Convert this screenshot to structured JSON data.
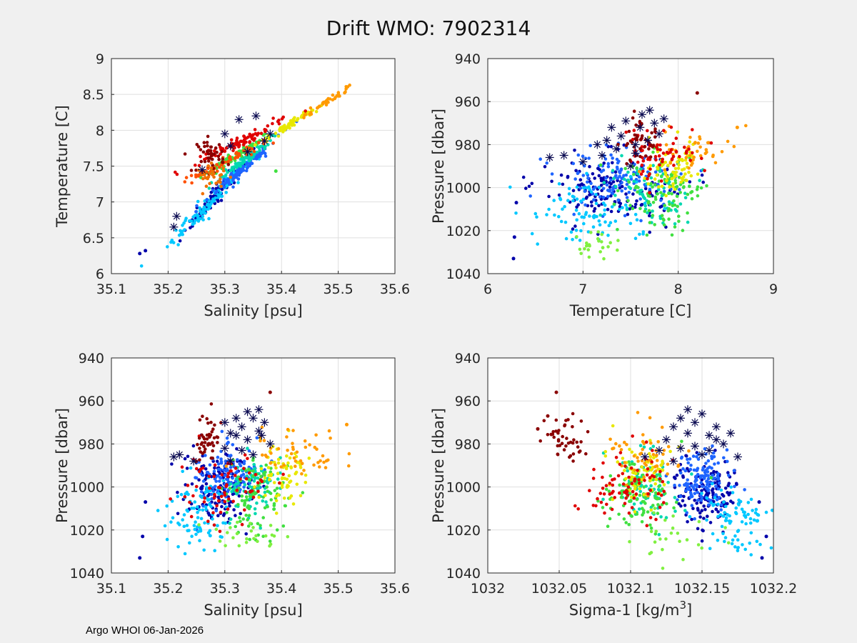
{
  "figure": {
    "title": "Drift WMO: 7902314",
    "footer": "Argo WHOI 06-Jan-2026",
    "colors": {
      "background": "#f0f0f0",
      "axes": "#ffffff",
      "grid": "#dfdfdf",
      "star": "#0a0a50"
    }
  },
  "chart_data": [
    {
      "type": "scatter",
      "id": "ts",
      "xlabel": "Salinity [psu]",
      "ylabel": "Temperature [C]",
      "xlim": [
        35.1,
        35.6
      ],
      "ylim": [
        6,
        9
      ],
      "y_reversed": false,
      "xticks": [
        "35.1",
        "35.2",
        "35.3",
        "35.4",
        "35.5",
        "35.6"
      ],
      "yticks": [
        "6",
        "6.5",
        "7",
        "7.5",
        "8",
        "8.5",
        "9"
      ],
      "clusters": [
        {
          "color": "#0000aa",
          "n": 120,
          "cx": 35.29,
          "cy": 7.15,
          "sx": 0.03,
          "sy": 0.28,
          "line": {
            "slope": 9.5
          }
        },
        {
          "color": "#00c8ff",
          "n": 110,
          "cx": 35.28,
          "cy": 7.05,
          "sx": 0.035,
          "sy": 0.3,
          "line": {
            "slope": 8.5
          }
        },
        {
          "color": "#1e64ff",
          "n": 90,
          "cx": 35.33,
          "cy": 7.45,
          "sx": 0.03,
          "sy": 0.2,
          "line": {
            "slope": 7
          }
        },
        {
          "color": "#00d8b0",
          "n": 70,
          "cx": 35.33,
          "cy": 7.55,
          "sx": 0.025,
          "sy": 0.12,
          "line": {
            "slope": 6
          }
        },
        {
          "color": "#40e040",
          "n": 80,
          "cx": 35.32,
          "cy": 7.65,
          "sx": 0.03,
          "sy": 0.15,
          "line": {
            "slope": 5
          }
        },
        {
          "color": "#e8e800",
          "n": 60,
          "cx": 35.42,
          "cy": 8.1,
          "sx": 0.025,
          "sy": 0.1,
          "line": {
            "slope": 5
          }
        },
        {
          "color": "#ff9a00",
          "n": 40,
          "cx": 35.48,
          "cy": 8.4,
          "sx": 0.02,
          "sy": 0.1,
          "line": {
            "slope": 5
          }
        },
        {
          "color": "#ff5000",
          "n": 60,
          "cx": 35.3,
          "cy": 7.55,
          "sx": 0.04,
          "sy": 0.15,
          "line": {
            "slope": 4
          }
        },
        {
          "color": "#e00000",
          "n": 80,
          "cx": 35.33,
          "cy": 7.85,
          "sx": 0.04,
          "sy": 0.2,
          "line": {
            "slope": 4
          }
        },
        {
          "color": "#8a0000",
          "n": 45,
          "cx": 35.275,
          "cy": 7.65,
          "sx": 0.012,
          "sy": 0.12
        },
        {
          "color": "#f07000",
          "n": 30,
          "cx": 35.28,
          "cy": 7.35,
          "sx": 0.015,
          "sy": 0.08
        }
      ],
      "outliers": [
        {
          "color": "#0000aa",
          "x": 35.15,
          "y": 6.28
        },
        {
          "color": "#0000aa",
          "x": 35.16,
          "y": 6.32
        },
        {
          "color": "#40e040",
          "x": 35.39,
          "y": 7.43
        }
      ],
      "stars": [
        {
          "x": 35.21,
          "y": 6.65
        },
        {
          "x": 35.215,
          "y": 6.8
        },
        {
          "x": 35.3,
          "y": 7.95
        },
        {
          "x": 35.325,
          "y": 8.15
        },
        {
          "x": 35.355,
          "y": 8.2
        },
        {
          "x": 35.37,
          "y": 7.85
        },
        {
          "x": 35.38,
          "y": 7.95
        },
        {
          "x": 35.34,
          "y": 7.7
        },
        {
          "x": 35.26,
          "y": 7.45
        },
        {
          "x": 35.31,
          "y": 7.78
        }
      ]
    },
    {
      "type": "scatter",
      "id": "tp",
      "xlabel": "Temperature [C]",
      "ylabel": "Pressure [dbar]",
      "xlim": [
        6,
        9
      ],
      "ylim": [
        940,
        1040
      ],
      "y_reversed": true,
      "xticks": [
        "6",
        "7",
        "8",
        "9"
      ],
      "yticks": [
        "940",
        "960",
        "980",
        "1000",
        "1020",
        "1040"
      ],
      "clusters": [
        {
          "color": "#0000aa",
          "n": 150,
          "cx": 7.3,
          "cy": 1000,
          "sx": 0.35,
          "sy": 8
        },
        {
          "color": "#1e64ff",
          "n": 130,
          "cx": 7.35,
          "cy": 995,
          "sx": 0.3,
          "sy": 7
        },
        {
          "color": "#00c8ff",
          "n": 90,
          "cx": 7.0,
          "cy": 1012,
          "sx": 0.3,
          "sy": 8
        },
        {
          "color": "#00d8b0",
          "n": 80,
          "cx": 7.7,
          "cy": 1000,
          "sx": 0.2,
          "sy": 8
        },
        {
          "color": "#40e040",
          "n": 100,
          "cx": 7.85,
          "cy": 1003,
          "sx": 0.2,
          "sy": 9
        },
        {
          "color": "#e8e800",
          "n": 70,
          "cx": 7.95,
          "cy": 992,
          "sx": 0.15,
          "sy": 7
        },
        {
          "color": "#ff9a00",
          "n": 45,
          "cx": 8.2,
          "cy": 982,
          "sx": 0.18,
          "sy": 5
        },
        {
          "color": "#e00000",
          "n": 70,
          "cx": 7.8,
          "cy": 985,
          "sx": 0.2,
          "sy": 7
        },
        {
          "color": "#8a0000",
          "n": 40,
          "cx": 7.6,
          "cy": 978,
          "sx": 0.1,
          "sy": 5
        },
        {
          "color": "#80f040",
          "n": 25,
          "cx": 7.1,
          "cy": 1027,
          "sx": 0.2,
          "sy": 4
        }
      ],
      "outliers": [
        {
          "color": "#0000aa",
          "x": 6.28,
          "y": 1023
        },
        {
          "color": "#0000aa",
          "x": 6.27,
          "y": 1033
        },
        {
          "color": "#0000aa",
          "x": 6.3,
          "y": 1007
        },
        {
          "color": "#8a0000",
          "x": 8.2,
          "y": 956
        },
        {
          "color": "#ff9a00",
          "x": 8.62,
          "y": 972
        }
      ],
      "stars": [
        {
          "x": 6.65,
          "y": 986
        },
        {
          "x": 6.8,
          "y": 985
        },
        {
          "x": 7.0,
          "y": 988
        },
        {
          "x": 7.2,
          "y": 985
        },
        {
          "x": 7.25,
          "y": 978
        },
        {
          "x": 7.3,
          "y": 972
        },
        {
          "x": 7.4,
          "y": 976
        },
        {
          "x": 7.45,
          "y": 969
        },
        {
          "x": 7.55,
          "y": 980
        },
        {
          "x": 7.6,
          "y": 972
        },
        {
          "x": 7.62,
          "y": 966
        },
        {
          "x": 7.7,
          "y": 964
        },
        {
          "x": 7.75,
          "y": 970
        },
        {
          "x": 7.8,
          "y": 975
        },
        {
          "x": 7.55,
          "y": 984
        },
        {
          "x": 7.35,
          "y": 982
        },
        {
          "x": 7.5,
          "y": 990
        },
        {
          "x": 7.85,
          "y": 968
        },
        {
          "x": 7.68,
          "y": 978
        },
        {
          "x": 7.15,
          "y": 980
        }
      ]
    },
    {
      "type": "scatter",
      "id": "sp",
      "xlabel": "Salinity [psu]",
      "ylabel": "Pressure [dbar]",
      "xlim": [
        35.1,
        35.6
      ],
      "ylim": [
        940,
        1040
      ],
      "y_reversed": true,
      "xticks": [
        "35.1",
        "35.2",
        "35.3",
        "35.4",
        "35.5",
        "35.6"
      ],
      "yticks": [
        "940",
        "960",
        "980",
        "1000",
        "1020",
        "1040"
      ],
      "clusters": [
        {
          "color": "#0000aa",
          "n": 150,
          "cx": 35.29,
          "cy": 1000,
          "sx": 0.03,
          "sy": 8
        },
        {
          "color": "#1e64ff",
          "n": 130,
          "cx": 35.3,
          "cy": 995,
          "sx": 0.025,
          "sy": 7
        },
        {
          "color": "#00c8ff",
          "n": 90,
          "cx": 35.25,
          "cy": 1012,
          "sx": 0.03,
          "sy": 9
        },
        {
          "color": "#00d8b0",
          "n": 80,
          "cx": 35.35,
          "cy": 1000,
          "sx": 0.02,
          "sy": 8
        },
        {
          "color": "#40e040",
          "n": 100,
          "cx": 35.36,
          "cy": 1005,
          "sx": 0.03,
          "sy": 9
        },
        {
          "color": "#e8e800",
          "n": 70,
          "cx": 35.4,
          "cy": 995,
          "sx": 0.02,
          "sy": 7
        },
        {
          "color": "#ff9a00",
          "n": 50,
          "cx": 35.42,
          "cy": 985,
          "sx": 0.04,
          "sy": 6
        },
        {
          "color": "#e00000",
          "n": 70,
          "cx": 35.3,
          "cy": 1000,
          "sx": 0.04,
          "sy": 10
        },
        {
          "color": "#8a0000",
          "n": 45,
          "cx": 35.27,
          "cy": 977,
          "sx": 0.01,
          "sy": 5
        },
        {
          "color": "#80f040",
          "n": 25,
          "cx": 35.34,
          "cy": 1022,
          "sx": 0.03,
          "sy": 5
        }
      ],
      "outliers": [
        {
          "color": "#0000aa",
          "x": 35.155,
          "y": 1023
        },
        {
          "color": "#0000aa",
          "x": 35.15,
          "y": 1033
        },
        {
          "color": "#0000aa",
          "x": 35.16,
          "y": 1007
        },
        {
          "color": "#8a0000",
          "x": 35.38,
          "y": 956
        },
        {
          "color": "#ff9a00",
          "x": 35.515,
          "y": 971
        }
      ],
      "stars": [
        {
          "x": 35.21,
          "y": 986
        },
        {
          "x": 35.22,
          "y": 985
        },
        {
          "x": 35.245,
          "y": 988
        },
        {
          "x": 35.31,
          "y": 975
        },
        {
          "x": 35.32,
          "y": 968
        },
        {
          "x": 35.33,
          "y": 972
        },
        {
          "x": 35.34,
          "y": 978
        },
        {
          "x": 35.35,
          "y": 968
        },
        {
          "x": 35.36,
          "y": 964
        },
        {
          "x": 35.37,
          "y": 970
        },
        {
          "x": 35.365,
          "y": 976
        },
        {
          "x": 35.38,
          "y": 980
        },
        {
          "x": 35.3,
          "y": 982
        },
        {
          "x": 35.31,
          "y": 988
        },
        {
          "x": 35.33,
          "y": 983
        },
        {
          "x": 35.35,
          "y": 985
        },
        {
          "x": 35.34,
          "y": 965
        },
        {
          "x": 35.32,
          "y": 976
        },
        {
          "x": 35.36,
          "y": 974
        },
        {
          "x": 35.3,
          "y": 970
        }
      ]
    },
    {
      "type": "scatter",
      "id": "sigp",
      "xlabel": "Sigma-1 [kg/m",
      "xlabel_sup": "3",
      "xlabel_end": "]",
      "ylabel": "Pressure [dbar]",
      "xlim": [
        1032,
        1032.2
      ],
      "ylim": [
        940,
        1040
      ],
      "y_reversed": true,
      "xticks": [
        "1032",
        "1032.05",
        "1032.1",
        "1032.15",
        "1032.2"
      ],
      "yticks": [
        "940",
        "960",
        "980",
        "1000",
        "1020",
        "1040"
      ],
      "clusters": [
        {
          "color": "#0000aa",
          "n": 150,
          "cx": 1032.155,
          "cy": 1002,
          "sx": 0.012,
          "sy": 7
        },
        {
          "color": "#1e64ff",
          "n": 130,
          "cx": 1032.15,
          "cy": 997,
          "sx": 0.01,
          "sy": 7
        },
        {
          "color": "#00c8ff",
          "n": 90,
          "cx": 1032.175,
          "cy": 1015,
          "sx": 0.012,
          "sy": 7
        },
        {
          "color": "#00d8b0",
          "n": 80,
          "cx": 1032.11,
          "cy": 1000,
          "sx": 0.012,
          "sy": 8
        },
        {
          "color": "#40e040",
          "n": 100,
          "cx": 1032.105,
          "cy": 1003,
          "sx": 0.012,
          "sy": 8
        },
        {
          "color": "#e8e800",
          "n": 70,
          "cx": 1032.11,
          "cy": 993,
          "sx": 0.01,
          "sy": 8
        },
        {
          "color": "#ff9a00",
          "n": 50,
          "cx": 1032.11,
          "cy": 985,
          "sx": 0.012,
          "sy": 7
        },
        {
          "color": "#e00000",
          "n": 80,
          "cx": 1032.095,
          "cy": 998,
          "sx": 0.015,
          "sy": 9
        },
        {
          "color": "#8a0000",
          "n": 45,
          "cx": 1032.055,
          "cy": 978,
          "sx": 0.008,
          "sy": 5
        },
        {
          "color": "#80f040",
          "n": 25,
          "cx": 1032.13,
          "cy": 1023,
          "sx": 0.015,
          "sy": 6
        }
      ],
      "outliers": [
        {
          "color": "#8a0000",
          "x": 1032.035,
          "y": 973
        },
        {
          "color": "#8a0000",
          "x": 1032.048,
          "y": 956
        },
        {
          "color": "#8a0000",
          "x": 1032.042,
          "y": 967
        },
        {
          "color": "#0000aa",
          "x": 1032.195,
          "y": 1023
        },
        {
          "color": "#0000aa",
          "x": 1032.192,
          "y": 1033
        },
        {
          "color": "#0000aa",
          "x": 1032.19,
          "y": 1007
        }
      ],
      "stars": [
        {
          "x": 1032.175,
          "y": 986
        },
        {
          "x": 1032.15,
          "y": 985
        },
        {
          "x": 1032.13,
          "y": 988
        },
        {
          "x": 1032.125,
          "y": 978
        },
        {
          "x": 1032.13,
          "y": 972
        },
        {
          "x": 1032.135,
          "y": 968
        },
        {
          "x": 1032.14,
          "y": 975
        },
        {
          "x": 1032.14,
          "y": 964
        },
        {
          "x": 1032.145,
          "y": 970
        },
        {
          "x": 1032.15,
          "y": 966
        },
        {
          "x": 1032.155,
          "y": 976
        },
        {
          "x": 1032.16,
          "y": 972
        },
        {
          "x": 1032.165,
          "y": 980
        },
        {
          "x": 1032.17,
          "y": 975
        },
        {
          "x": 1032.12,
          "y": 983
        },
        {
          "x": 1032.135,
          "y": 982
        },
        {
          "x": 1032.155,
          "y": 983
        },
        {
          "x": 1032.145,
          "y": 981
        },
        {
          "x": 1032.11,
          "y": 986
        },
        {
          "x": 1032.16,
          "y": 978
        }
      ]
    }
  ]
}
